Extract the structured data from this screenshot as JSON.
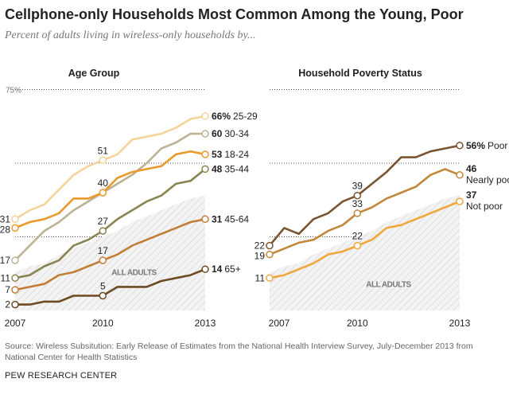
{
  "title": "Cellphone-only Households Most Common Among the Young, Poor",
  "subtitle": "Percent of adults living in wireless-only households by...",
  "source": "Source: Wireless Subsitution: Early Release of Estimates from the National Health Interview Survey, July-December 2013 from National Center for Health Statistics",
  "credit": "PEW RESEARCH CENTER",
  "chart_data": [
    {
      "type": "line",
      "title": "Age Group",
      "x": [
        "2007 H1",
        "2007 H2",
        "2008 H1",
        "2008 H2",
        "2009 H1",
        "2009 H2",
        "2010 H1",
        "2010 H2",
        "2011 H1",
        "2011 H2",
        "2012 H1",
        "2012 H2",
        "2013 H1",
        "2013 H2"
      ],
      "xtick_labels": [
        "2007",
        "2010",
        "2013"
      ],
      "ylim": [
        0,
        75
      ],
      "ytick_label": "75%",
      "gridlines": [
        25,
        50,
        75
      ],
      "area": {
        "label": "ALL ADULTS",
        "values": [
          13,
          15,
          16,
          19,
          21,
          23,
          25,
          27,
          30,
          32,
          34,
          36,
          38,
          39
        ]
      },
      "series": [
        {
          "name": "25-29",
          "end_label": "66%",
          "color": "#f7d39c",
          "values": [
            31,
            34,
            36,
            41,
            46,
            49,
            51,
            53,
            58,
            59,
            60,
            62,
            65,
            66
          ]
        },
        {
          "name": "30-34",
          "end_label": "60",
          "color": "#bdb294",
          "values": [
            17,
            22,
            27,
            30,
            34,
            37,
            40,
            43,
            46,
            50,
            55,
            57,
            60,
            60
          ]
        },
        {
          "name": "18-24",
          "end_label": "53",
          "color": "#ea9a2b",
          "values": [
            28,
            30,
            31,
            33,
            38,
            38,
            40,
            45,
            47,
            48,
            49,
            53,
            54,
            53
          ]
        },
        {
          "name": "35-44",
          "end_label": "48",
          "color": "#8a8452",
          "values": [
            11,
            12,
            15,
            17,
            22,
            24,
            27,
            31,
            34,
            37,
            39,
            43,
            44,
            48
          ]
        },
        {
          "name": "45-64",
          "end_label": "31",
          "color": "#c37d36",
          "values": [
            7,
            8,
            9,
            12,
            13,
            15,
            17,
            19,
            22,
            24,
            26,
            28,
            30,
            31
          ]
        },
        {
          "name": "65+",
          "end_label": "14",
          "color": "#6d4a22",
          "values": [
            2,
            2,
            3,
            3,
            5,
            5,
            5,
            8,
            8,
            8,
            10,
            11,
            12,
            14
          ]
        }
      ]
    },
    {
      "type": "line",
      "title": "Household Poverty Status",
      "x": [
        "2007 H1",
        "2007 H2",
        "2008 H1",
        "2008 H2",
        "2009 H1",
        "2009 H2",
        "2010 H1",
        "2010 H2",
        "2011 H1",
        "2011 H2",
        "2012 H1",
        "2012 H2",
        "2013 H1",
        "2013 H2"
      ],
      "xtick_labels": [
        "2007",
        "2010",
        "2013"
      ],
      "ylim": [
        0,
        75
      ],
      "gridlines": [
        25,
        50,
        75
      ],
      "area": {
        "label": "ALL ADULTS",
        "values": [
          13,
          15,
          16,
          19,
          21,
          23,
          25,
          27,
          30,
          32,
          34,
          36,
          38,
          39
        ]
      },
      "series": [
        {
          "name": "Poor",
          "end_label": "56%",
          "color": "#7a5430",
          "values": [
            22,
            28,
            26,
            31,
            33,
            37,
            39,
            43,
            47,
            52,
            52,
            54,
            55,
            56
          ]
        },
        {
          "name": "Nearly poor",
          "end_label": "46",
          "color": "#c3873a",
          "values": [
            19,
            21,
            23,
            24,
            27,
            29,
            33,
            35,
            38,
            40,
            42,
            46,
            48,
            46
          ]
        },
        {
          "name": "Not poor",
          "end_label": "37",
          "color": "#f0a83c",
          "values": [
            11,
            12,
            14,
            16,
            19,
            20,
            22,
            24,
            28,
            29,
            31,
            33,
            35,
            37
          ]
        }
      ]
    }
  ]
}
